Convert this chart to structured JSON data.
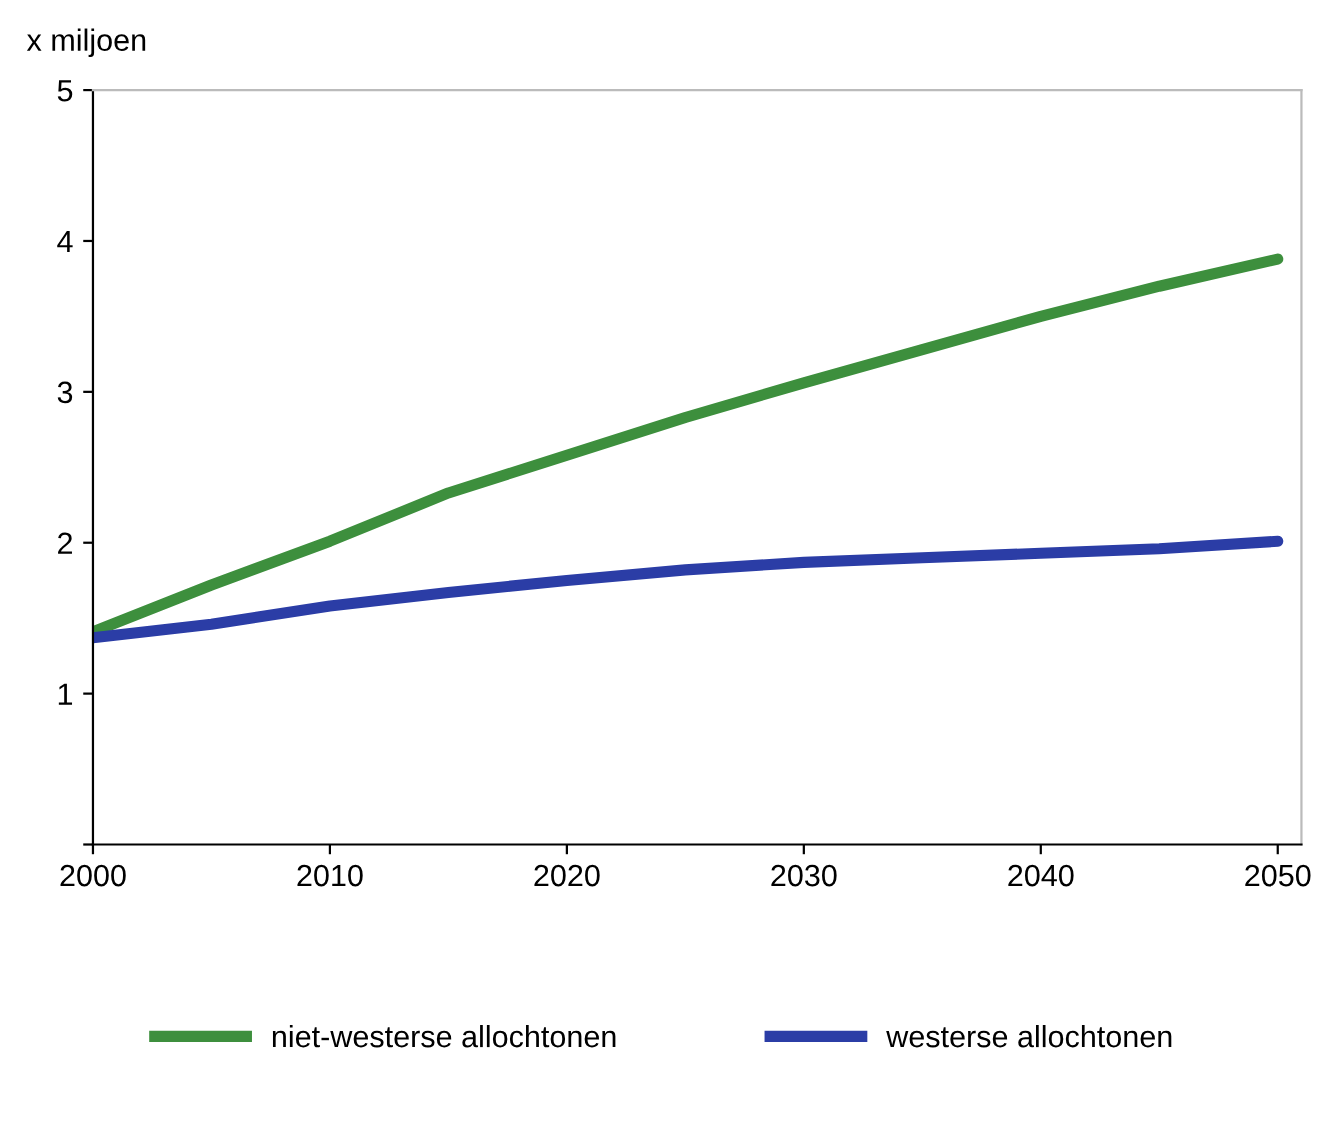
{
  "chart_data": {
    "type": "line",
    "ylabel": "x miljoen",
    "x": [
      2000,
      2005,
      2010,
      2015,
      2020,
      2025,
      2030,
      2035,
      2040,
      2045,
      2050
    ],
    "series": [
      {
        "name": "niet-westerse allochtonen",
        "color": "#3d8f3d",
        "values": [
          1.41,
          1.72,
          2.01,
          2.33,
          2.58,
          2.83,
          3.06,
          3.28,
          3.5,
          3.7,
          3.88
        ]
      },
      {
        "name": "westerse allochtonen",
        "color": "#2b3da6",
        "values": [
          1.37,
          1.46,
          1.58,
          1.67,
          1.75,
          1.82,
          1.87,
          1.9,
          1.93,
          1.96,
          2.01
        ]
      }
    ],
    "xlim": [
      2000,
      2051
    ],
    "xticks": [
      2000,
      2010,
      2020,
      2030,
      2040,
      2050
    ],
    "ylim": [
      0,
      5
    ],
    "yticks": [
      {
        "value": 0,
        "label": null
      },
      1,
      2,
      3,
      4,
      5
    ],
    "grid": false,
    "legend": "bottom",
    "marker": "none",
    "line_style": "solid"
  }
}
